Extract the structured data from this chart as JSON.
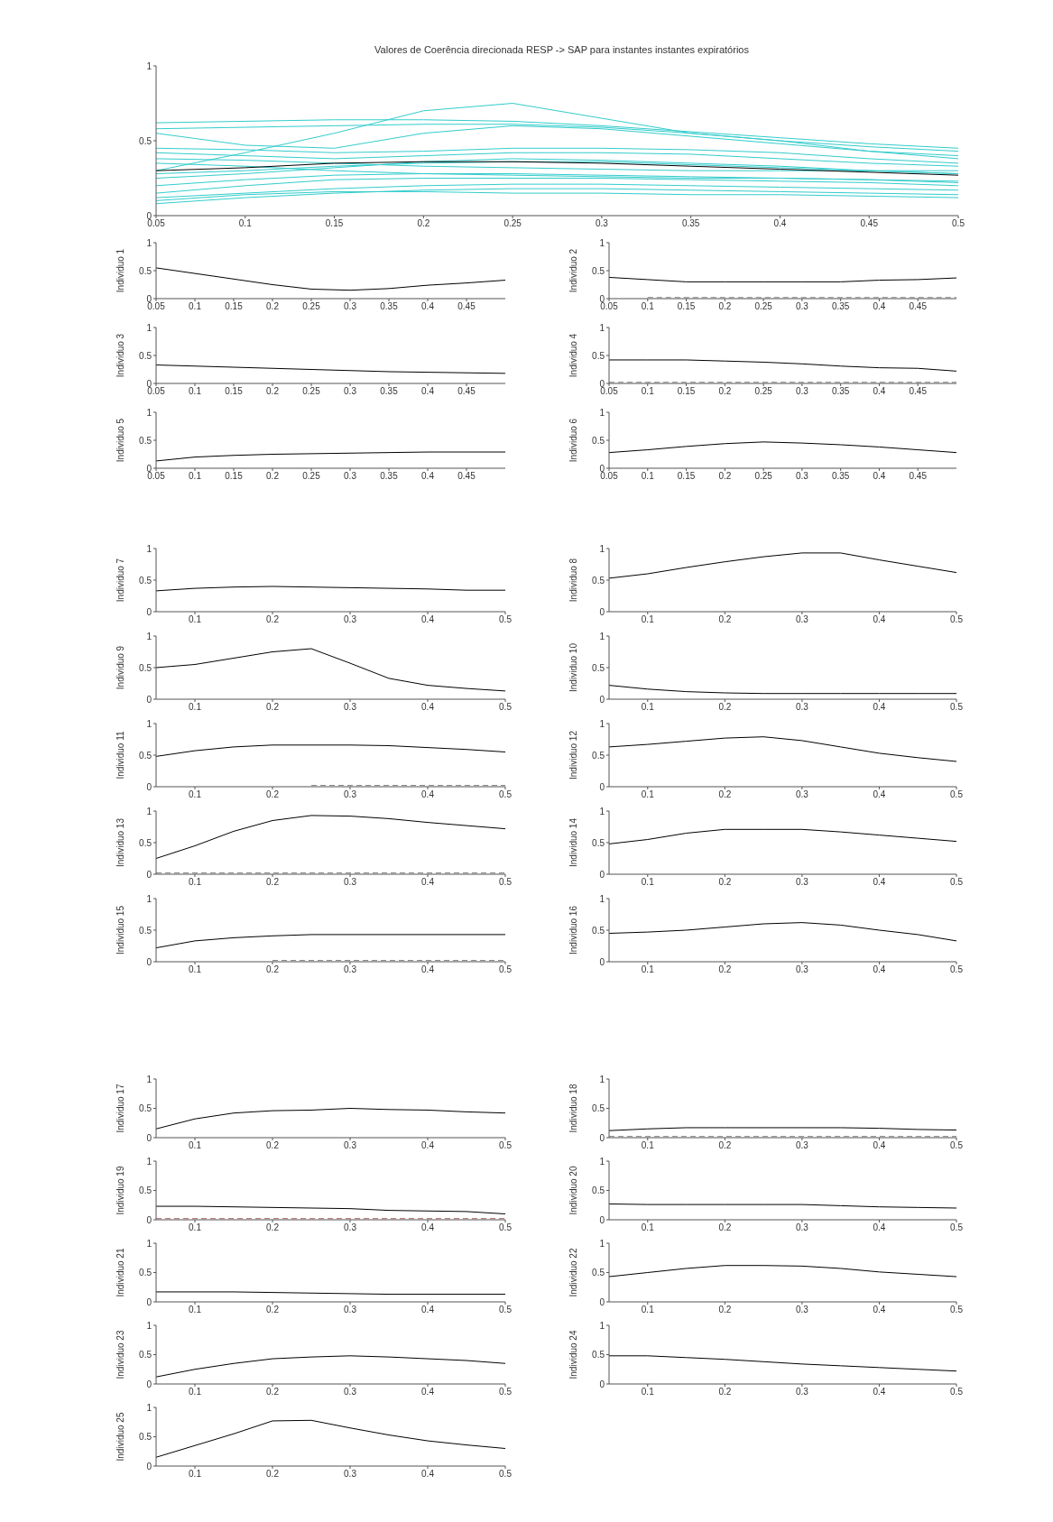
{
  "chart_data": [
    {
      "type": "line",
      "title": "Valores de Coerência direcionada RESP -> SAP para instantes instantes expiratórios",
      "x": [
        0.05,
        0.1,
        0.15,
        0.2,
        0.25,
        0.3,
        0.35,
        0.4,
        0.45,
        0.5
      ],
      "xlim": [
        0.05,
        0.5
      ],
      "xticks": [
        0.05,
        0.1,
        0.15,
        0.2,
        0.25,
        0.3,
        0.35,
        0.4,
        0.45,
        0.5
      ],
      "ylim": [
        0,
        1
      ],
      "yticks": [
        0,
        0.5,
        1
      ],
      "grid": false,
      "legend": false,
      "marker": "none",
      "series": [
        {
          "color": "#33cccc",
          "values": [
            0.62,
            0.63,
            0.64,
            0.64,
            0.63,
            0.6,
            0.56,
            0.52,
            0.48,
            0.45
          ]
        },
        {
          "color": "#33cccc",
          "values": [
            0.58,
            0.59,
            0.6,
            0.61,
            0.61,
            0.59,
            0.55,
            0.5,
            0.46,
            0.43
          ]
        },
        {
          "color": "#33cccc",
          "values": [
            0.3,
            0.42,
            0.55,
            0.7,
            0.75,
            0.65,
            0.55,
            0.5,
            0.43,
            0.38
          ]
        },
        {
          "color": "#33cccc",
          "values": [
            0.55,
            0.47,
            0.45,
            0.55,
            0.6,
            0.58,
            0.53,
            0.48,
            0.43,
            0.4
          ]
        },
        {
          "color": "#33cccc",
          "values": [
            0.45,
            0.44,
            0.42,
            0.43,
            0.45,
            0.45,
            0.44,
            0.42,
            0.38,
            0.35
          ]
        },
        {
          "color": "#33cccc",
          "values": [
            0.42,
            0.4,
            0.38,
            0.4,
            0.42,
            0.42,
            0.41,
            0.38,
            0.35,
            0.33
          ]
        },
        {
          "color": "#33cccc",
          "values": [
            0.38,
            0.37,
            0.35,
            0.33,
            0.32,
            0.31,
            0.3,
            0.3,
            0.3,
            0.3
          ]
        },
        {
          "color": "#33cccc",
          "values": [
            0.25,
            0.28,
            0.32,
            0.36,
            0.38,
            0.37,
            0.35,
            0.33,
            0.3,
            0.28
          ]
        },
        {
          "color": "#33cccc",
          "values": [
            0.2,
            0.24,
            0.27,
            0.28,
            0.28,
            0.27,
            0.26,
            0.25,
            0.24,
            0.22
          ]
        },
        {
          "color": "#33cccc",
          "values": [
            0.15,
            0.2,
            0.24,
            0.25,
            0.25,
            0.25,
            0.24,
            0.23,
            0.22,
            0.2
          ]
        },
        {
          "color": "#33cccc",
          "values": [
            0.12,
            0.15,
            0.18,
            0.2,
            0.21,
            0.21,
            0.2,
            0.19,
            0.18,
            0.17
          ]
        },
        {
          "color": "#33cccc",
          "values": [
            0.08,
            0.12,
            0.15,
            0.17,
            0.18,
            0.18,
            0.17,
            0.16,
            0.15,
            0.14
          ]
        },
        {
          "color": "#33cccc",
          "values": [
            0.1,
            0.14,
            0.16,
            0.16,
            0.15,
            0.15,
            0.14,
            0.14,
            0.13,
            0.12
          ]
        },
        {
          "color": "#33cccc",
          "values": [
            0.28,
            0.3,
            0.33,
            0.35,
            0.36,
            0.36,
            0.34,
            0.32,
            0.3,
            0.28
          ]
        },
        {
          "color": "#33cccc",
          "values": [
            0.35,
            0.33,
            0.3,
            0.28,
            0.27,
            0.26,
            0.25,
            0.25,
            0.24,
            0.23
          ]
        },
        {
          "color": "#000000",
          "values": [
            0.3,
            0.32,
            0.35,
            0.36,
            0.36,
            0.35,
            0.33,
            0.31,
            0.29,
            0.27
          ]
        }
      ]
    },
    {
      "type": "line",
      "ylabel": "Individuo 1",
      "x": [
        0.05,
        0.1,
        0.15,
        0.2,
        0.25,
        0.3,
        0.35,
        0.4,
        0.45,
        0.5
      ],
      "xlim": [
        0.05,
        0.5
      ],
      "xticks": [
        0.05,
        0.1,
        0.15,
        0.2,
        0.25,
        0.3,
        0.35,
        0.4,
        0.45
      ],
      "ylim": [
        0,
        1
      ],
      "yticks": [
        0,
        0.5,
        1
      ],
      "grid": false,
      "legend": false,
      "marker": "none",
      "series": [
        {
          "color": "#000000",
          "values": [
            0.55,
            0.45,
            0.35,
            0.25,
            0.17,
            0.15,
            0.18,
            0.24,
            0.28,
            0.33
          ]
        }
      ]
    },
    {
      "type": "line",
      "ylabel": "Individuo 2",
      "x": [
        0.05,
        0.1,
        0.15,
        0.2,
        0.25,
        0.3,
        0.35,
        0.4,
        0.45,
        0.5
      ],
      "xlim": [
        0.05,
        0.5
      ],
      "xticks": [
        0.05,
        0.1,
        0.15,
        0.2,
        0.25,
        0.3,
        0.35,
        0.4,
        0.45
      ],
      "ylim": [
        0,
        1
      ],
      "yticks": [
        0,
        0.5,
        1
      ],
      "grid": false,
      "legend": false,
      "marker": "none",
      "series": [
        {
          "color": "#000000",
          "values": [
            0.38,
            0.34,
            0.3,
            0.3,
            0.3,
            0.3,
            0.3,
            0.33,
            0.34,
            0.37
          ]
        },
        {
          "color": "#808080",
          "line_style": "dashed",
          "values": [
            null,
            0.02,
            0.02,
            0.02,
            0.02,
            0.02,
            0.02,
            0.02,
            0.02,
            0.02
          ]
        }
      ]
    },
    {
      "type": "line",
      "ylabel": "Individuo 3",
      "x": [
        0.05,
        0.1,
        0.15,
        0.2,
        0.25,
        0.3,
        0.35,
        0.4,
        0.45,
        0.5
      ],
      "xlim": [
        0.05,
        0.5
      ],
      "xticks": [
        0.05,
        0.1,
        0.15,
        0.2,
        0.25,
        0.3,
        0.35,
        0.4,
        0.45
      ],
      "ylim": [
        0,
        1
      ],
      "yticks": [
        0,
        0.5,
        1
      ],
      "grid": false,
      "legend": false,
      "marker": "none",
      "series": [
        {
          "color": "#000000",
          "values": [
            0.33,
            0.31,
            0.29,
            0.27,
            0.25,
            0.23,
            0.21,
            0.2,
            0.19,
            0.18
          ]
        }
      ]
    },
    {
      "type": "line",
      "ylabel": "Individuo 4",
      "x": [
        0.05,
        0.1,
        0.15,
        0.2,
        0.25,
        0.3,
        0.35,
        0.4,
        0.45,
        0.5
      ],
      "xlim": [
        0.05,
        0.5
      ],
      "xticks": [
        0.05,
        0.1,
        0.15,
        0.2,
        0.25,
        0.3,
        0.35,
        0.4,
        0.45
      ],
      "ylim": [
        0,
        1
      ],
      "yticks": [
        0,
        0.5,
        1
      ],
      "grid": false,
      "legend": false,
      "marker": "none",
      "series": [
        {
          "color": "#000000",
          "values": [
            0.42,
            0.42,
            0.42,
            0.4,
            0.38,
            0.35,
            0.31,
            0.28,
            0.27,
            0.22
          ]
        },
        {
          "color": "#808080",
          "line_style": "dashed",
          "values": [
            0.02,
            0.02,
            0.02,
            0.02,
            0.02,
            0.02,
            0.02,
            0.02,
            0.02,
            0.02
          ]
        }
      ]
    },
    {
      "type": "line",
      "ylabel": "Individuo 5",
      "x": [
        0.05,
        0.1,
        0.15,
        0.2,
        0.25,
        0.3,
        0.35,
        0.4,
        0.45,
        0.5
      ],
      "xlim": [
        0.05,
        0.5
      ],
      "xticks": [
        0.05,
        0.1,
        0.15,
        0.2,
        0.25,
        0.3,
        0.35,
        0.4,
        0.45
      ],
      "ylim": [
        0,
        1
      ],
      "yticks": [
        0,
        0.5,
        1
      ],
      "grid": false,
      "legend": false,
      "marker": "none",
      "series": [
        {
          "color": "#000000",
          "values": [
            0.13,
            0.2,
            0.23,
            0.25,
            0.26,
            0.27,
            0.28,
            0.29,
            0.29,
            0.29
          ]
        }
      ]
    },
    {
      "type": "line",
      "ylabel": "Individuo 6",
      "x": [
        0.05,
        0.1,
        0.15,
        0.2,
        0.25,
        0.3,
        0.35,
        0.4,
        0.45,
        0.5
      ],
      "xlim": [
        0.05,
        0.5
      ],
      "xticks": [
        0.05,
        0.1,
        0.15,
        0.2,
        0.25,
        0.3,
        0.35,
        0.4,
        0.45
      ],
      "ylim": [
        0,
        1
      ],
      "yticks": [
        0,
        0.5,
        1
      ],
      "grid": false,
      "legend": false,
      "marker": "none",
      "series": [
        {
          "color": "#000000",
          "values": [
            0.28,
            0.33,
            0.39,
            0.44,
            0.47,
            0.45,
            0.42,
            0.38,
            0.33,
            0.28
          ]
        }
      ]
    },
    {
      "type": "line",
      "ylabel": "Individuo 7",
      "x": [
        0.05,
        0.1,
        0.15,
        0.2,
        0.25,
        0.3,
        0.35,
        0.4,
        0.45,
        0.5
      ],
      "xlim": [
        0.05,
        0.5
      ],
      "xticks": [
        0.1,
        0.2,
        0.3,
        0.4,
        0.5
      ],
      "ylim": [
        0,
        1
      ],
      "yticks": [
        0,
        0.5,
        1
      ],
      "grid": false,
      "legend": false,
      "marker": "none",
      "series": [
        {
          "color": "#000000",
          "values": [
            0.33,
            0.37,
            0.39,
            0.4,
            0.39,
            0.38,
            0.37,
            0.36,
            0.34,
            0.34
          ]
        }
      ]
    },
    {
      "type": "line",
      "ylabel": "Individuo 8",
      "x": [
        0.05,
        0.1,
        0.15,
        0.2,
        0.25,
        0.3,
        0.35,
        0.4,
        0.45,
        0.5
      ],
      "xlim": [
        0.05,
        0.5
      ],
      "xticks": [
        0.1,
        0.2,
        0.3,
        0.4,
        0.5
      ],
      "ylim": [
        0,
        1
      ],
      "yticks": [
        0,
        0.5,
        1
      ],
      "grid": false,
      "legend": false,
      "marker": "none",
      "series": [
        {
          "color": "#000000",
          "values": [
            0.53,
            0.6,
            0.7,
            0.79,
            0.87,
            0.93,
            0.93,
            0.82,
            0.72,
            0.62
          ]
        }
      ]
    },
    {
      "type": "line",
      "ylabel": "Individuo 9",
      "x": [
        0.05,
        0.1,
        0.15,
        0.2,
        0.25,
        0.3,
        0.35,
        0.4,
        0.45,
        0.5
      ],
      "xlim": [
        0.05,
        0.5
      ],
      "xticks": [
        0.1,
        0.2,
        0.3,
        0.4,
        0.5
      ],
      "ylim": [
        0,
        1
      ],
      "yticks": [
        0,
        0.5,
        1
      ],
      "grid": false,
      "legend": false,
      "marker": "none",
      "series": [
        {
          "color": "#000000",
          "values": [
            0.5,
            0.55,
            0.65,
            0.75,
            0.8,
            0.57,
            0.33,
            0.22,
            0.17,
            0.13
          ]
        }
      ]
    },
    {
      "type": "line",
      "ylabel": "Individuo 10",
      "x": [
        0.05,
        0.1,
        0.15,
        0.2,
        0.25,
        0.3,
        0.35,
        0.4,
        0.45,
        0.5
      ],
      "xlim": [
        0.05,
        0.5
      ],
      "xticks": [
        0.1,
        0.2,
        0.3,
        0.4,
        0.5
      ],
      "ylim": [
        0,
        1
      ],
      "yticks": [
        0,
        0.5,
        1
      ],
      "grid": false,
      "legend": false,
      "marker": "none",
      "series": [
        {
          "color": "#000000",
          "values": [
            0.22,
            0.16,
            0.12,
            0.1,
            0.09,
            0.09,
            0.09,
            0.09,
            0.09,
            0.09
          ]
        }
      ]
    },
    {
      "type": "line",
      "ylabel": "Individuo 11",
      "x": [
        0.05,
        0.1,
        0.15,
        0.2,
        0.25,
        0.3,
        0.35,
        0.4,
        0.45,
        0.5
      ],
      "xlim": [
        0.05,
        0.5
      ],
      "xticks": [
        0.1,
        0.2,
        0.3,
        0.4,
        0.5
      ],
      "ylim": [
        0,
        1
      ],
      "yticks": [
        0,
        0.5,
        1
      ],
      "grid": false,
      "legend": false,
      "marker": "none",
      "series": [
        {
          "color": "#000000",
          "values": [
            0.48,
            0.57,
            0.63,
            0.66,
            0.66,
            0.66,
            0.65,
            0.62,
            0.59,
            0.55
          ]
        },
        {
          "color": "#808080",
          "line_style": "dashed",
          "values": [
            null,
            null,
            null,
            null,
            0.02,
            0.02,
            0.02,
            0.02,
            0.02,
            0.02
          ]
        }
      ]
    },
    {
      "type": "line",
      "ylabel": "Individuo 12",
      "x": [
        0.05,
        0.1,
        0.15,
        0.2,
        0.25,
        0.3,
        0.35,
        0.4,
        0.45,
        0.5
      ],
      "xlim": [
        0.05,
        0.5
      ],
      "xticks": [
        0.1,
        0.2,
        0.3,
        0.4,
        0.5
      ],
      "ylim": [
        0,
        1
      ],
      "yticks": [
        0,
        0.5,
        1
      ],
      "grid": false,
      "legend": false,
      "marker": "none",
      "series": [
        {
          "color": "#000000",
          "values": [
            0.63,
            0.67,
            0.72,
            0.77,
            0.79,
            0.73,
            0.63,
            0.53,
            0.46,
            0.4
          ]
        }
      ]
    },
    {
      "type": "line",
      "ylabel": "Individuo 13",
      "x": [
        0.05,
        0.1,
        0.15,
        0.2,
        0.25,
        0.3,
        0.35,
        0.4,
        0.45,
        0.5
      ],
      "xlim": [
        0.05,
        0.5
      ],
      "xticks": [
        0.1,
        0.2,
        0.3,
        0.4,
        0.5
      ],
      "ylim": [
        0,
        1
      ],
      "yticks": [
        0,
        0.5,
        1
      ],
      "grid": false,
      "legend": false,
      "marker": "none",
      "series": [
        {
          "color": "#000000",
          "values": [
            0.25,
            0.45,
            0.68,
            0.85,
            0.93,
            0.92,
            0.88,
            0.82,
            0.77,
            0.72
          ]
        },
        {
          "color": "#808080",
          "line_style": "dashed",
          "values": [
            0.02,
            0.02,
            0.02,
            0.02,
            0.02,
            0.02,
            0.02,
            0.02,
            0.02,
            0.02
          ]
        }
      ]
    },
    {
      "type": "line",
      "ylabel": "Individuo 14",
      "x": [
        0.05,
        0.1,
        0.15,
        0.2,
        0.25,
        0.3,
        0.35,
        0.4,
        0.45,
        0.5
      ],
      "xlim": [
        0.05,
        0.5
      ],
      "xticks": [
        0.1,
        0.2,
        0.3,
        0.4,
        0.5
      ],
      "ylim": [
        0,
        1
      ],
      "yticks": [
        0,
        0.5,
        1
      ],
      "grid": false,
      "legend": false,
      "marker": "none",
      "series": [
        {
          "color": "#000000",
          "values": [
            0.48,
            0.55,
            0.65,
            0.71,
            0.71,
            0.71,
            0.67,
            0.62,
            0.57,
            0.52
          ]
        }
      ]
    },
    {
      "type": "line",
      "ylabel": "Individuo 15",
      "x": [
        0.05,
        0.1,
        0.15,
        0.2,
        0.25,
        0.3,
        0.35,
        0.4,
        0.45,
        0.5
      ],
      "xlim": [
        0.05,
        0.5
      ],
      "xticks": [
        0.1,
        0.2,
        0.3,
        0.4,
        0.5
      ],
      "ylim": [
        0,
        1
      ],
      "yticks": [
        0,
        0.5,
        1
      ],
      "grid": false,
      "legend": false,
      "marker": "none",
      "series": [
        {
          "color": "#000000",
          "values": [
            0.22,
            0.33,
            0.38,
            0.41,
            0.43,
            0.43,
            0.43,
            0.43,
            0.43,
            0.43
          ]
        },
        {
          "color": "#808080",
          "line_style": "dashed",
          "values": [
            null,
            null,
            null,
            0.02,
            0.02,
            0.02,
            0.02,
            0.02,
            0.02,
            0.02
          ]
        }
      ]
    },
    {
      "type": "line",
      "ylabel": "Individuo 16",
      "x": [
        0.05,
        0.1,
        0.15,
        0.2,
        0.25,
        0.3,
        0.35,
        0.4,
        0.45,
        0.5
      ],
      "xlim": [
        0.05,
        0.5
      ],
      "xticks": [
        0.1,
        0.2,
        0.3,
        0.4,
        0.5
      ],
      "ylim": [
        0,
        1
      ],
      "yticks": [
        0,
        0.5,
        1
      ],
      "grid": false,
      "legend": false,
      "marker": "none",
      "series": [
        {
          "color": "#000000",
          "values": [
            0.45,
            0.47,
            0.5,
            0.55,
            0.6,
            0.62,
            0.58,
            0.5,
            0.43,
            0.33
          ]
        }
      ]
    },
    {
      "type": "line",
      "ylabel": "Individuo 17",
      "x": [
        0.05,
        0.1,
        0.15,
        0.2,
        0.25,
        0.3,
        0.35,
        0.4,
        0.45,
        0.5
      ],
      "xlim": [
        0.05,
        0.5
      ],
      "xticks": [
        0.1,
        0.2,
        0.3,
        0.4,
        0.5
      ],
      "ylim": [
        0,
        1
      ],
      "yticks": [
        0,
        0.5,
        1
      ],
      "grid": false,
      "legend": false,
      "marker": "none",
      "series": [
        {
          "color": "#000000",
          "values": [
            0.15,
            0.32,
            0.42,
            0.46,
            0.47,
            0.5,
            0.48,
            0.47,
            0.44,
            0.42
          ]
        }
      ]
    },
    {
      "type": "line",
      "ylabel": "Individuo 18",
      "x": [
        0.05,
        0.1,
        0.15,
        0.2,
        0.25,
        0.3,
        0.35,
        0.4,
        0.45,
        0.5
      ],
      "xlim": [
        0.05,
        0.5
      ],
      "xticks": [
        0.1,
        0.2,
        0.3,
        0.4,
        0.5
      ],
      "ylim": [
        0,
        1
      ],
      "yticks": [
        0,
        0.5,
        1
      ],
      "grid": false,
      "legend": false,
      "marker": "none",
      "series": [
        {
          "color": "#000000",
          "values": [
            0.12,
            0.15,
            0.17,
            0.17,
            0.17,
            0.17,
            0.17,
            0.16,
            0.14,
            0.13
          ]
        },
        {
          "color": "#808080",
          "line_style": "dashed",
          "values": [
            0.02,
            0.02,
            0.02,
            0.02,
            0.02,
            0.02,
            0.02,
            0.02,
            0.02,
            0.02
          ]
        }
      ]
    },
    {
      "type": "line",
      "ylabel": "Individuo 19",
      "x": [
        0.05,
        0.1,
        0.15,
        0.2,
        0.25,
        0.3,
        0.35,
        0.4,
        0.45,
        0.5
      ],
      "xlim": [
        0.05,
        0.5
      ],
      "xticks": [
        0.1,
        0.2,
        0.3,
        0.4,
        0.5
      ],
      "ylim": [
        0,
        1
      ],
      "yticks": [
        0,
        0.5,
        1
      ],
      "grid": false,
      "legend": false,
      "marker": "none",
      "series": [
        {
          "color": "#000000",
          "values": [
            0.23,
            0.23,
            0.22,
            0.21,
            0.2,
            0.19,
            0.16,
            0.15,
            0.14,
            0.1
          ]
        },
        {
          "color": "#b06060",
          "line_style": "dashed",
          "values": [
            0.02,
            0.02,
            0.02,
            0.02,
            0.02,
            0.02,
            0.02,
            0.02,
            0.02,
            0.02
          ]
        }
      ]
    },
    {
      "type": "line",
      "ylabel": "Individuo 20",
      "x": [
        0.05,
        0.1,
        0.15,
        0.2,
        0.25,
        0.3,
        0.35,
        0.4,
        0.45,
        0.5
      ],
      "xlim": [
        0.05,
        0.5
      ],
      "xticks": [
        0.1,
        0.2,
        0.3,
        0.4,
        0.5
      ],
      "ylim": [
        0,
        1
      ],
      "yticks": [
        0,
        0.5,
        1
      ],
      "grid": false,
      "legend": false,
      "marker": "none",
      "series": [
        {
          "color": "#000000",
          "values": [
            0.27,
            0.26,
            0.26,
            0.26,
            0.26,
            0.26,
            0.24,
            0.22,
            0.21,
            0.2
          ]
        }
      ]
    },
    {
      "type": "line",
      "ylabel": "Individuo 21",
      "x": [
        0.05,
        0.1,
        0.15,
        0.2,
        0.25,
        0.3,
        0.35,
        0.4,
        0.45,
        0.5
      ],
      "xlim": [
        0.05,
        0.5
      ],
      "xticks": [
        0.1,
        0.2,
        0.3,
        0.4,
        0.5
      ],
      "ylim": [
        0,
        1
      ],
      "yticks": [
        0,
        0.5,
        1
      ],
      "grid": false,
      "legend": false,
      "marker": "none",
      "series": [
        {
          "color": "#000000",
          "values": [
            0.17,
            0.17,
            0.17,
            0.16,
            0.15,
            0.14,
            0.13,
            0.13,
            0.13,
            0.13
          ]
        }
      ]
    },
    {
      "type": "line",
      "ylabel": "Individuo 22",
      "x": [
        0.05,
        0.1,
        0.15,
        0.2,
        0.25,
        0.3,
        0.35,
        0.4,
        0.45,
        0.5
      ],
      "xlim": [
        0.05,
        0.5
      ],
      "xticks": [
        0.1,
        0.2,
        0.3,
        0.4,
        0.5
      ],
      "ylim": [
        0,
        1
      ],
      "yticks": [
        0,
        0.5,
        1
      ],
      "grid": false,
      "legend": false,
      "marker": "none",
      "series": [
        {
          "color": "#000000",
          "values": [
            0.43,
            0.5,
            0.57,
            0.62,
            0.62,
            0.61,
            0.57,
            0.51,
            0.47,
            0.43
          ]
        }
      ]
    },
    {
      "type": "line",
      "ylabel": "Individuo 23",
      "x": [
        0.05,
        0.1,
        0.15,
        0.2,
        0.25,
        0.3,
        0.35,
        0.4,
        0.45,
        0.5
      ],
      "xlim": [
        0.05,
        0.5
      ],
      "xticks": [
        0.1,
        0.2,
        0.3,
        0.4,
        0.5
      ],
      "ylim": [
        0,
        1
      ],
      "yticks": [
        0,
        0.5,
        1
      ],
      "grid": false,
      "legend": false,
      "marker": "none",
      "series": [
        {
          "color": "#000000",
          "values": [
            0.12,
            0.25,
            0.35,
            0.43,
            0.46,
            0.48,
            0.46,
            0.43,
            0.4,
            0.35
          ]
        }
      ]
    },
    {
      "type": "line",
      "ylabel": "Individuo 24",
      "x": [
        0.05,
        0.1,
        0.15,
        0.2,
        0.25,
        0.3,
        0.35,
        0.4,
        0.45,
        0.5
      ],
      "xlim": [
        0.05,
        0.5
      ],
      "xticks": [
        0.1,
        0.2,
        0.3,
        0.4,
        0.5
      ],
      "ylim": [
        0,
        1
      ],
      "yticks": [
        0,
        0.5,
        1
      ],
      "grid": false,
      "legend": false,
      "marker": "none",
      "series": [
        {
          "color": "#000000",
          "values": [
            0.48,
            0.48,
            0.45,
            0.42,
            0.38,
            0.34,
            0.31,
            0.28,
            0.25,
            0.22
          ]
        }
      ]
    },
    {
      "type": "line",
      "ylabel": "Individuo 25",
      "x": [
        0.05,
        0.1,
        0.15,
        0.2,
        0.25,
        0.3,
        0.35,
        0.4,
        0.45,
        0.5
      ],
      "xlim": [
        0.05,
        0.5
      ],
      "xticks": [
        0.1,
        0.2,
        0.3,
        0.4,
        0.5
      ],
      "ylim": [
        0,
        1
      ],
      "yticks": [
        0,
        0.5,
        1
      ],
      "grid": false,
      "legend": false,
      "marker": "none",
      "series": [
        {
          "color": "#000000",
          "values": [
            0.15,
            0.35,
            0.55,
            0.77,
            0.78,
            0.65,
            0.53,
            0.43,
            0.36,
            0.3
          ]
        }
      ]
    }
  ]
}
